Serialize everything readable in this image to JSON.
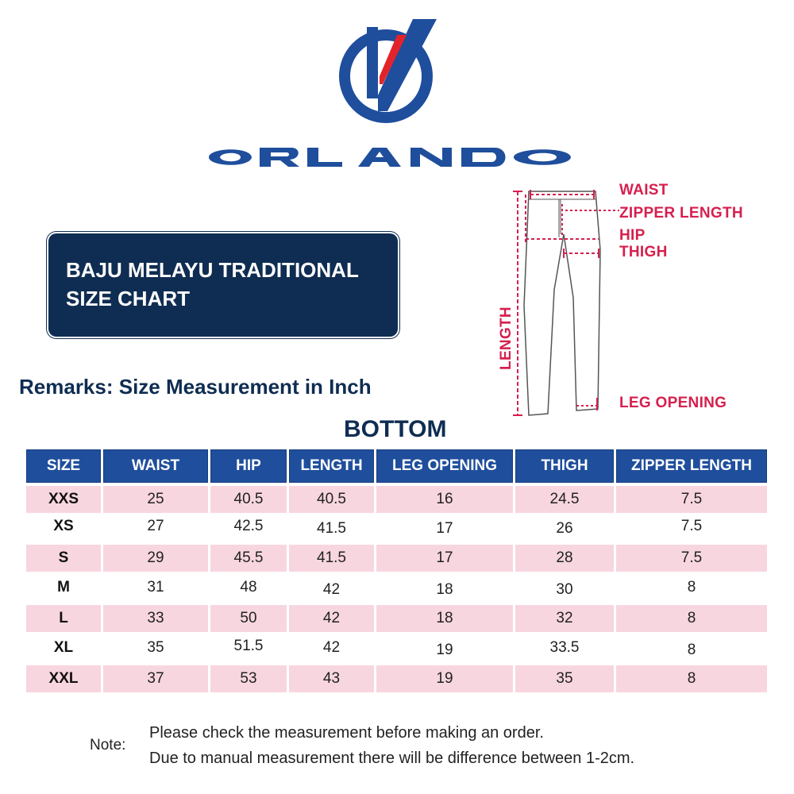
{
  "brand": {
    "name": "ORLANDO",
    "colors": {
      "blue": "#1f4e9c",
      "red": "#e3232a",
      "navy": "#0f2d52",
      "pink": "#d6204e"
    }
  },
  "title": {
    "line1": "BAJU MELAYU TRADITIONAL",
    "line2": "SIZE CHART"
  },
  "remarks": "Remarks: Size  Measurement  in Inch",
  "section": "BOTTOM",
  "diagram": {
    "labels": {
      "waist": "WAIST",
      "zipper": "ZIPPER LENGTH",
      "hip": "HIP",
      "thigh": "THIGH",
      "length": "LENGTH",
      "leg_opening": "LEG OPENING"
    }
  },
  "table": {
    "headers": [
      "SIZE",
      "WAIST",
      "HIP",
      "LENGTH",
      "LEG OPENING",
      "THIGH",
      "ZIPPER LENGTH"
    ],
    "rows": [
      [
        "XXS",
        "25",
        "40.5",
        "40.5",
        "16",
        "24.5",
        "7.5"
      ],
      [
        "XS",
        "27",
        "42.5",
        "41.5",
        "17",
        "26",
        "7.5"
      ],
      [
        "S",
        "29",
        "45.5",
        "41.5",
        "17",
        "28",
        "7.5"
      ],
      [
        "M",
        "31",
        "48",
        "42",
        "18",
        "30",
        "8"
      ],
      [
        "L",
        "33",
        "50",
        "42",
        "18",
        "32",
        "8"
      ],
      [
        "XL",
        "35",
        "51.5",
        "42",
        "19",
        "33.5",
        "8"
      ],
      [
        "XXL",
        "37",
        "53",
        "43",
        "19",
        "35",
        "8"
      ]
    ]
  },
  "note": {
    "label": "Note:",
    "line1": "Please check the measurement before making an order.",
    "line2": "Due to manual measurement there will be difference between 1-2cm."
  }
}
